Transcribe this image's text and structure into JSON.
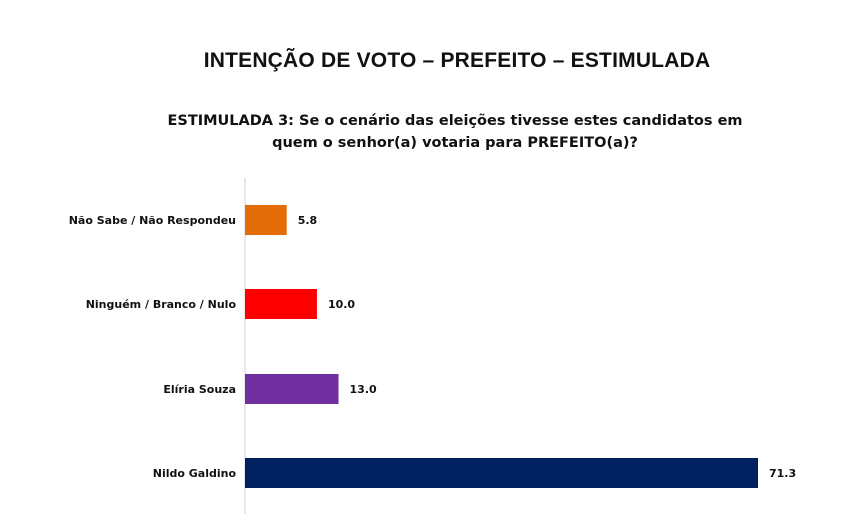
{
  "title": "INTENÇÃO DE VOTO – PREFEITO – ESTIMULADA",
  "subtitle": "ESTIMULADA 3: Se o cenário das eleições tivesse estes candidatos em quem o senhor(a) votaria para PREFEITO(a)?",
  "chart_data": {
    "type": "bar",
    "orientation": "horizontal",
    "categories": [
      "Não Sabe / Não Respondeu",
      "Ninguém / Branco / Nulo",
      "Elíria Souza",
      "Nildo Galdino"
    ],
    "values": [
      5.8,
      10.0,
      13.0,
      71.3
    ],
    "value_labels": [
      "5.8",
      "10.0",
      "13.0",
      "71.3"
    ],
    "colors": [
      "#E36C09",
      "#FF0000",
      "#7030A0",
      "#002060"
    ],
    "xlim": [
      0,
      75
    ],
    "grid": false,
    "legend": "none"
  }
}
